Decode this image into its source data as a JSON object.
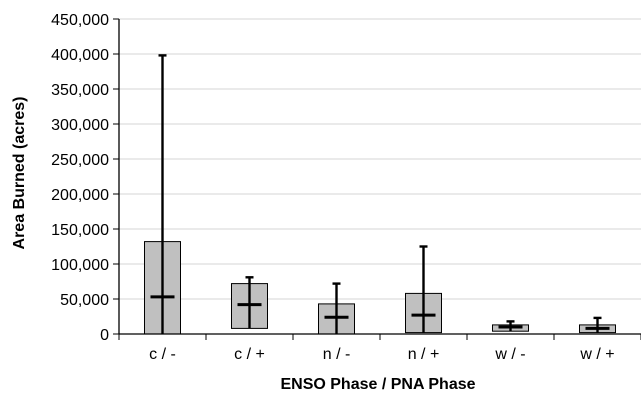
{
  "chart_data": {
    "type": "box",
    "xlabel": "ENSO Phase / PNA Phase",
    "ylabel": "Area Burned (acres)",
    "ylim": [
      0,
      450000
    ],
    "yticks": [
      0,
      50000,
      100000,
      150000,
      200000,
      250000,
      300000,
      350000,
      400000,
      450000
    ],
    "ytick_labels": [
      "0",
      "50,000",
      "100,000",
      "150,000",
      "200,000",
      "250,000",
      "300,000",
      "350,000",
      "400,000",
      "450,000"
    ],
    "grid": true,
    "categories": [
      "c / -",
      "c / +",
      "n / -",
      "n / +",
      "w / -",
      "w / +"
    ],
    "boxes": [
      {
        "category": "c / -",
        "min": 0,
        "q1": 0,
        "median": 53000,
        "q3": 132000,
        "max": 398000
      },
      {
        "category": "c / +",
        "min": 8000,
        "q1": 8000,
        "median": 42000,
        "q3": 72000,
        "max": 81000
      },
      {
        "category": "n / -",
        "min": 0,
        "q1": 0,
        "median": 24000,
        "q3": 43000,
        "max": 72000
      },
      {
        "category": "n / +",
        "min": 2000,
        "q1": 2000,
        "median": 27000,
        "q3": 58000,
        "max": 125000
      },
      {
        "category": "w / -",
        "min": 4000,
        "q1": 4000,
        "median": 10000,
        "q3": 13000,
        "max": 18000
      },
      {
        "category": "w / +",
        "min": 2000,
        "q1": 2000,
        "median": 8000,
        "q3": 13000,
        "max": 23000
      }
    ],
    "colors": {
      "box_fill": "#c0c0c0",
      "box_stroke": "#000000",
      "whisker": "#000000",
      "grid": "#d4d4d4"
    }
  }
}
